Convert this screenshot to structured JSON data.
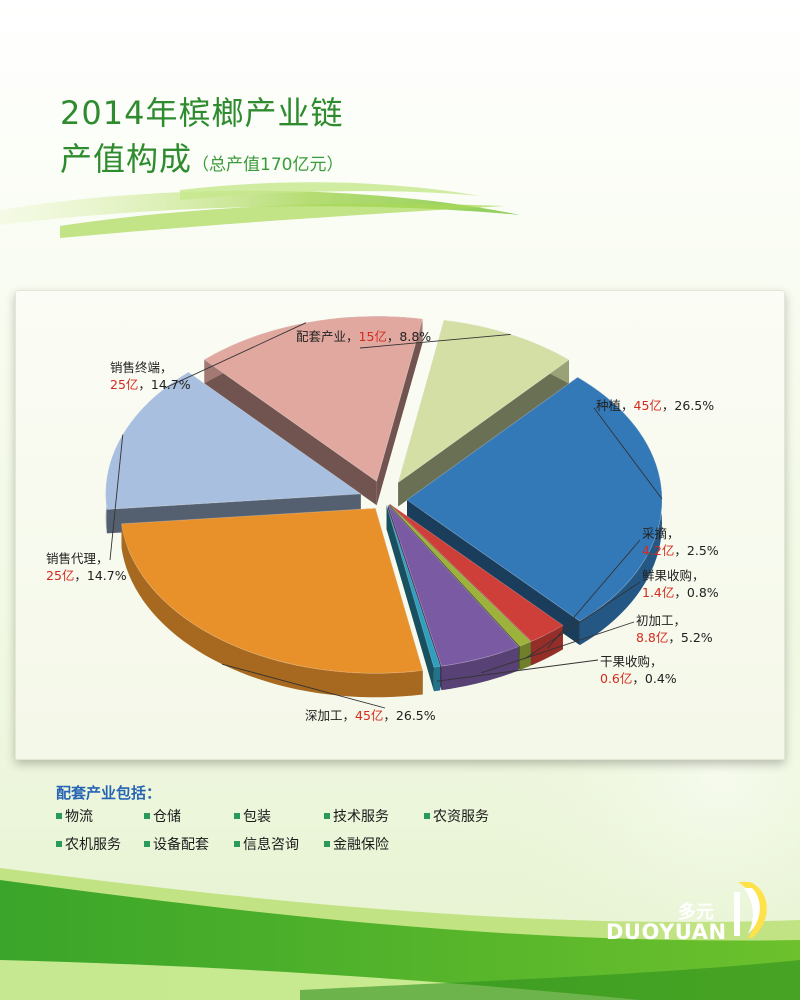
{
  "header": {
    "title_line1": "2014年槟榔产业链",
    "title_line2": "产值构成",
    "subtitle": "（总产值170亿元）"
  },
  "chart_data": {
    "type": "pie",
    "title": "2014年槟榔产业链产值构成（总产值170亿元）",
    "total": 170,
    "unit": "亿",
    "slices": [
      {
        "name": "种植",
        "value_label": "45亿",
        "value": 45,
        "percent_label": "26.5%",
        "percent": 26.5,
        "color": "#3479b7"
      },
      {
        "name": "采摘",
        "value_label": "4.2亿",
        "value": 4.2,
        "percent_label": "2.5%",
        "percent": 2.5,
        "color": "#cf3f39"
      },
      {
        "name": "鲜果收购",
        "value_label": "1.4亿",
        "value": 1.4,
        "percent_label": "0.8%",
        "percent": 0.8,
        "color": "#9cb23a"
      },
      {
        "name": "初加工",
        "value_label": "8.8亿",
        "value": 8.8,
        "percent_label": "5.2%",
        "percent": 5.2,
        "color": "#7a5aa3"
      },
      {
        "name": "干果收购",
        "value_label": "0.6亿",
        "value": 0.6,
        "percent_label": "0.4%",
        "percent": 0.4,
        "color": "#2f9fc0"
      },
      {
        "name": "深加工",
        "value_label": "45亿",
        "value": 45,
        "percent_label": "26.5%",
        "percent": 26.5,
        "color": "#e8912b"
      },
      {
        "name": "销售代理",
        "value_label": "25亿",
        "value": 25,
        "percent_label": "14.7%",
        "percent": 14.7,
        "color": "#a8bfdf"
      },
      {
        "name": "销售终端",
        "value_label": "25亿",
        "value": 25,
        "percent_label": "14.7%",
        "percent": 14.7,
        "color": "#e1a8a0"
      },
      {
        "name": "配套产业",
        "value_label": "15亿",
        "value": 15,
        "percent_label": "8.8%",
        "percent": 8.8,
        "color": "#d4dfa5"
      }
    ],
    "separator": "，"
  },
  "legend": {
    "title": "配套产业包括：",
    "items": [
      "物流",
      "仓储",
      "包装",
      "技术服务",
      "农资服务",
      "农机服务",
      "设备配套",
      "信息咨询",
      "金融保险"
    ]
  },
  "brand": {
    "name_cn": "多元",
    "name_en": "DUOYUAN"
  }
}
